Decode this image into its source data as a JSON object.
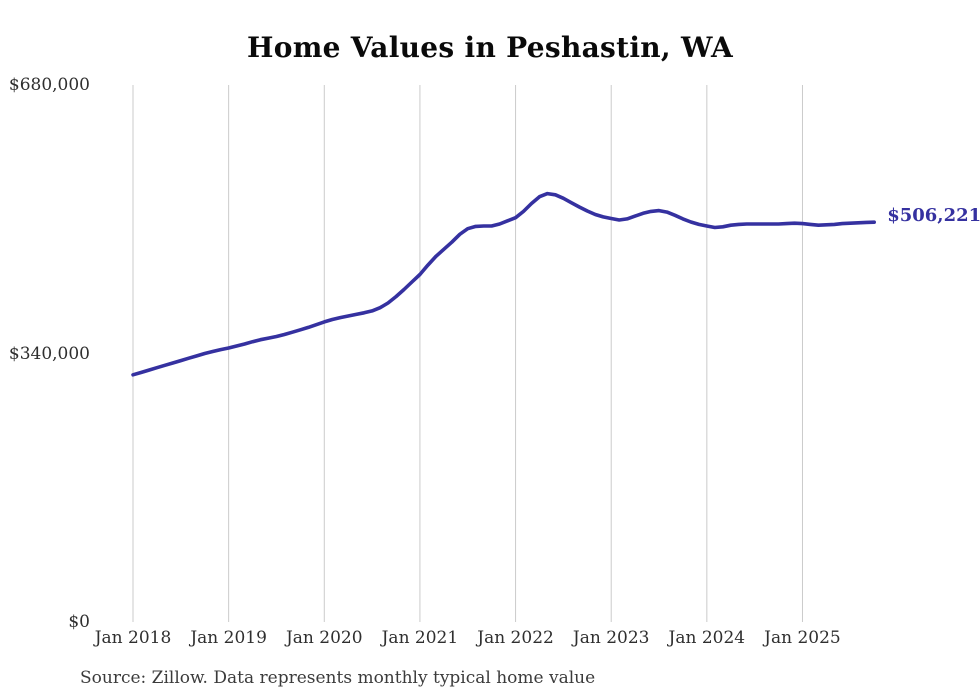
{
  "chart": {
    "title": "Home Values in Peshastin, WA",
    "end_label": "$506,221",
    "source_note": "Source: Zillow. Data represents monthly typical home value",
    "colors": {
      "line": "#3531a0",
      "end_label": "#3531a0",
      "grid": "#cbcbcb",
      "tick_text": "#2f2f2f",
      "title_text": "#0a0a0a",
      "source_text": "#3b3b3b",
      "background": "#ffffff"
    }
  },
  "chart_data": {
    "type": "line",
    "title": "Home Values in Peshastin, WA",
    "xlabel": "",
    "ylabel": "",
    "ylim": [
      0,
      680000
    ],
    "y_ticks": [
      0,
      340000,
      680000
    ],
    "y_tick_labels": [
      "$0",
      "$340,000",
      "$680,000"
    ],
    "x_tick_labels": [
      "Jan 2018",
      "Jan 2019",
      "Jan 2020",
      "Jan 2021",
      "Jan 2022",
      "Jan 2023",
      "Jan 2024",
      "Jan 2025"
    ],
    "x_tick_month_indices": [
      0,
      12,
      24,
      36,
      48,
      60,
      72,
      84
    ],
    "grid": "vertical-only",
    "legend": "none",
    "series_name": "Typical home value",
    "annotation": {
      "text": "$506,221",
      "value": 506221,
      "position": "line-end"
    },
    "x": [
      "2018-01",
      "2018-02",
      "2018-03",
      "2018-04",
      "2018-05",
      "2018-06",
      "2018-07",
      "2018-08",
      "2018-09",
      "2018-10",
      "2018-11",
      "2018-12",
      "2019-01",
      "2019-02",
      "2019-03",
      "2019-04",
      "2019-05",
      "2019-06",
      "2019-07",
      "2019-08",
      "2019-09",
      "2019-10",
      "2019-11",
      "2019-12",
      "2020-01",
      "2020-02",
      "2020-03",
      "2020-04",
      "2020-05",
      "2020-06",
      "2020-07",
      "2020-08",
      "2020-09",
      "2020-10",
      "2020-11",
      "2020-12",
      "2021-01",
      "2021-02",
      "2021-03",
      "2021-04",
      "2021-05",
      "2021-06",
      "2021-07",
      "2021-08",
      "2021-09",
      "2021-10",
      "2021-11",
      "2021-12",
      "2022-01",
      "2022-02",
      "2022-03",
      "2022-04",
      "2022-05",
      "2022-06",
      "2022-07",
      "2022-08",
      "2022-09",
      "2022-10",
      "2022-11",
      "2022-12",
      "2023-01",
      "2023-02",
      "2023-03",
      "2023-04",
      "2023-05",
      "2023-06",
      "2023-07",
      "2023-08",
      "2023-09",
      "2023-10",
      "2023-11",
      "2023-12",
      "2024-01",
      "2024-02",
      "2024-03",
      "2024-04",
      "2024-05",
      "2024-06",
      "2024-07",
      "2024-08",
      "2024-09",
      "2024-10",
      "2024-11",
      "2024-12",
      "2025-01",
      "2025-02",
      "2025-03",
      "2025-04",
      "2025-05",
      "2025-06",
      "2025-07",
      "2025-08",
      "2025-09",
      "2025-10"
    ],
    "values": [
      313000,
      316000,
      319000,
      322000,
      325000,
      328000,
      331000,
      334000,
      337000,
      340000,
      342500,
      345000,
      347000,
      349500,
      352000,
      355000,
      357500,
      359500,
      361500,
      364000,
      367000,
      370000,
      373000,
      376500,
      380000,
      383000,
      385500,
      387500,
      389500,
      391500,
      394000,
      398000,
      404000,
      412000,
      421000,
      430500,
      440000,
      452000,
      463000,
      472000,
      481000,
      491000,
      498000,
      501000,
      501500,
      501500,
      504000,
      508000,
      512000,
      520000,
      530000,
      538500,
      542500,
      541000,
      536500,
      531000,
      525500,
      520500,
      516000,
      513000,
      511000,
      509000,
      510500,
      514000,
      517500,
      520000,
      521000,
      519000,
      515000,
      510500,
      506500,
      503500,
      501500,
      499500,
      500500,
      502500,
      503500,
      504000,
      504000,
      504000,
      504000,
      504000,
      504500,
      505000,
      504500,
      503500,
      502500,
      503000,
      503500,
      504500,
      505000,
      505500,
      506000,
      506221
    ]
  }
}
